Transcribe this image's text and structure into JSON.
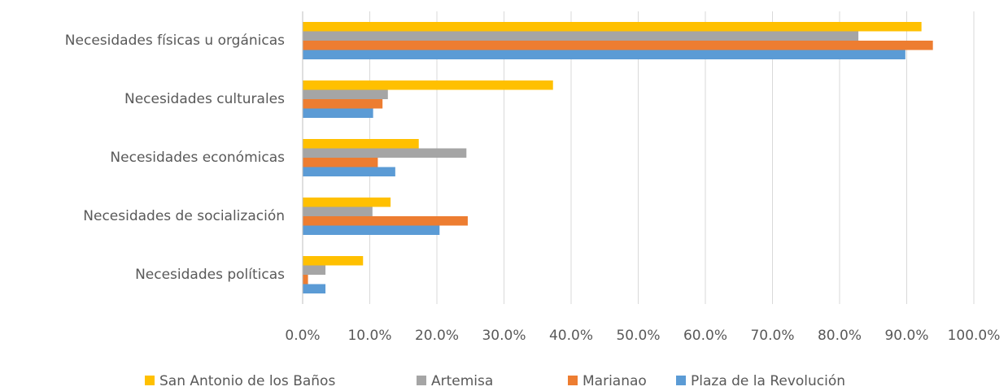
{
  "chart_data": {
    "type": "bar",
    "orientation": "horizontal",
    "categories": [
      "Necesidades físicas u orgánicas",
      "Necesidades culturales",
      "Necesidades económicas",
      "Necesidades de socialización",
      "Necesidades políticas"
    ],
    "series": [
      {
        "name": "San Antonio de los Baños",
        "color": "#FFC000",
        "values": [
          92.2,
          37.3,
          17.3,
          13.1,
          9.0
        ]
      },
      {
        "name": "Artemisa",
        "color": "#A5A5A5",
        "values": [
          82.8,
          12.7,
          24.4,
          10.4,
          3.4
        ]
      },
      {
        "name": "Marianao",
        "color": "#ED7D31",
        "values": [
          93.9,
          11.9,
          11.2,
          24.6,
          0.8
        ]
      },
      {
        "name": "Plaza de la Revolución",
        "color": "#5B9BD5",
        "values": [
          89.8,
          10.5,
          13.8,
          20.4,
          3.4
        ]
      }
    ],
    "xlim": [
      0,
      100
    ],
    "xticks": [
      {
        "value": 0,
        "label": "0.0%"
      },
      {
        "value": 10,
        "label": "10.0%"
      },
      {
        "value": 20,
        "label": "20.0%"
      },
      {
        "value": 30,
        "label": "30.0%"
      },
      {
        "value": 40,
        "label": "40.0%"
      },
      {
        "value": 50,
        "label": "50.0%"
      },
      {
        "value": 60,
        "label": "60.0%"
      },
      {
        "value": 70,
        "label": "70.0%"
      },
      {
        "value": 80,
        "label": "80.0%"
      },
      {
        "value": 90,
        "label": "90.0%"
      },
      {
        "value": 100,
        "label": "100.0%"
      }
    ],
    "grid": true,
    "legend": "bottom"
  }
}
